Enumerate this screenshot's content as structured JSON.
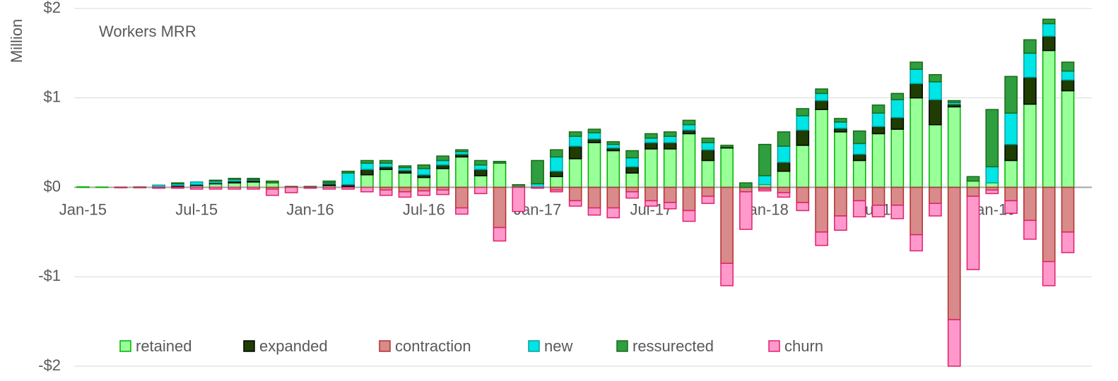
{
  "chart_data": {
    "type": "stacked-bar",
    "title": "Workers MRR",
    "y_label": "Million",
    "categories": [
      "Jan-15",
      null,
      null,
      null,
      null,
      null,
      "Jul-15",
      null,
      null,
      null,
      null,
      null,
      "Jan-16",
      null,
      null,
      null,
      null,
      null,
      "Jul-16",
      null,
      null,
      null,
      null,
      null,
      "Jan-17",
      null,
      null,
      null,
      null,
      null,
      "Jul-17",
      null,
      null,
      null,
      null,
      null,
      "Jan-18",
      null,
      null,
      null,
      null,
      null,
      "Jul-18",
      null,
      null,
      null,
      null,
      null,
      "Jan-19",
      null,
      null,
      null,
      null
    ],
    "ylim": [
      -2,
      2
    ],
    "yticks": [
      {
        "value": -2,
        "label": "-$2"
      },
      {
        "value": -1,
        "label": "-$1"
      },
      {
        "value": 0,
        "label": "$0"
      },
      {
        "value": 1,
        "label": "$1"
      },
      {
        "value": 2,
        "label": "$2"
      }
    ],
    "grid": true,
    "legend": "bottom",
    "series": [
      {
        "name": "retained",
        "color": "#99ff99",
        "stroke": "#00b000",
        "values": [
          0.005,
          0.003,
          0.003,
          0.005,
          0.005,
          0.01,
          0.02,
          0.04,
          0.05,
          0.06,
          0.05,
          0.005,
          0.005,
          0.02,
          0.01,
          0.14,
          0.2,
          0.16,
          0.11,
          0.21,
          0.34,
          0.13,
          0.27,
          0,
          0,
          0.12,
          0.32,
          0.5,
          0.41,
          0.16,
          0.43,
          0.43,
          0.6,
          0.3,
          0.44,
          0,
          0.03,
          0.18,
          0.47,
          0.87,
          0.62,
          0.3,
          0.6,
          0.65,
          1.0,
          0.7,
          0.9,
          0.07,
          0.05,
          0.3,
          0.93,
          1.53,
          1.08
        ]
      },
      {
        "name": "expanded",
        "color": "#1f3d00",
        "stroke": "#000000",
        "values": [
          0,
          0,
          0,
          0,
          0,
          0.01,
          0.01,
          0.01,
          0.02,
          0.02,
          0,
          0,
          0,
          0.02,
          0.02,
          0.06,
          0.03,
          0.03,
          0.03,
          0.04,
          0.03,
          0.07,
          0,
          0,
          0,
          0.06,
          0.14,
          0.04,
          0.03,
          0.07,
          0.07,
          0.07,
          0.04,
          0.12,
          0.01,
          0,
          0,
          0.1,
          0.17,
          0.1,
          0.04,
          0.07,
          0.08,
          0.13,
          0.16,
          0.28,
          0.03,
          0,
          0,
          0.18,
          0.3,
          0.16,
          0.12
        ]
      },
      {
        "name": "contraction",
        "color": "#d98a8a",
        "stroke": "#b03030",
        "values": [
          0,
          0,
          0,
          0,
          0,
          0,
          0,
          0,
          0,
          0,
          -0.02,
          0,
          0,
          0,
          0,
          0,
          -0.03,
          -0.05,
          -0.04,
          -0.03,
          -0.23,
          0,
          -0.45,
          0,
          0,
          -0.03,
          -0.15,
          -0.23,
          -0.23,
          -0.05,
          -0.15,
          -0.17,
          -0.26,
          -0.1,
          -0.85,
          -0.05,
          -0.02,
          -0.06,
          -0.17,
          -0.5,
          -0.32,
          -0.15,
          -0.2,
          -0.2,
          -0.53,
          -0.18,
          -1.48,
          -0.1,
          -0.03,
          -0.15,
          -0.37,
          -0.83,
          -0.5
        ]
      },
      {
        "name": "new",
        "color": "#00e5e5",
        "stroke": "#00a0a0",
        "values": [
          0,
          0,
          0,
          0,
          0.02,
          0.02,
          0.03,
          0.02,
          0.02,
          0.01,
          0,
          0,
          0,
          0.01,
          0.13,
          0.07,
          0.04,
          0.03,
          0.07,
          0.05,
          0.03,
          0.05,
          0,
          0,
          0.04,
          0.16,
          0.11,
          0.07,
          0.04,
          0.1,
          0.05,
          0.07,
          0.06,
          0.08,
          0,
          0,
          0.1,
          0.18,
          0.16,
          0.08,
          0.07,
          0.12,
          0.15,
          0.2,
          0.16,
          0.2,
          0.02,
          0,
          0.18,
          0.35,
          0.27,
          0.14,
          0.1
        ]
      },
      {
        "name": "ressurected",
        "color": "#2e9e3e",
        "stroke": "#1a6a1a",
        "values": [
          0,
          0,
          0,
          0,
          0,
          0.01,
          0,
          0.01,
          0.01,
          0.01,
          0.02,
          0.005,
          0.005,
          0.02,
          0.02,
          0.03,
          0.03,
          0.02,
          0.04,
          0.05,
          0.02,
          0.05,
          0.02,
          0.03,
          0.26,
          0.08,
          0.05,
          0.04,
          0.03,
          0.08,
          0.05,
          0.05,
          0.05,
          0.05,
          0.02,
          0.05,
          0.35,
          0.16,
          0.08,
          0.05,
          0.04,
          0.14,
          0.09,
          0.07,
          0.08,
          0.08,
          0.02,
          0.05,
          0.64,
          0.41,
          0.15,
          0.05,
          0.1
        ]
      },
      {
        "name": "churn",
        "color": "#ff99cc",
        "stroke": "#e0206a",
        "values": [
          0,
          0,
          -0.005,
          -0.005,
          -0.01,
          -0.01,
          -0.02,
          -0.02,
          -0.02,
          -0.02,
          -0.07,
          -0.06,
          -0.01,
          -0.02,
          -0.02,
          -0.05,
          -0.06,
          -0.06,
          -0.05,
          -0.05,
          -0.07,
          -0.07,
          -0.15,
          -0.27,
          -0.01,
          -0.02,
          -0.06,
          -0.08,
          -0.11,
          -0.07,
          -0.06,
          -0.07,
          -0.12,
          -0.08,
          -0.25,
          -0.42,
          -0.02,
          -0.05,
          -0.09,
          -0.15,
          -0.16,
          -0.18,
          -0.13,
          -0.15,
          -0.18,
          -0.14,
          -0.52,
          -0.82,
          -0.04,
          -0.14,
          -0.21,
          -0.27,
          -0.23
        ]
      }
    ]
  }
}
